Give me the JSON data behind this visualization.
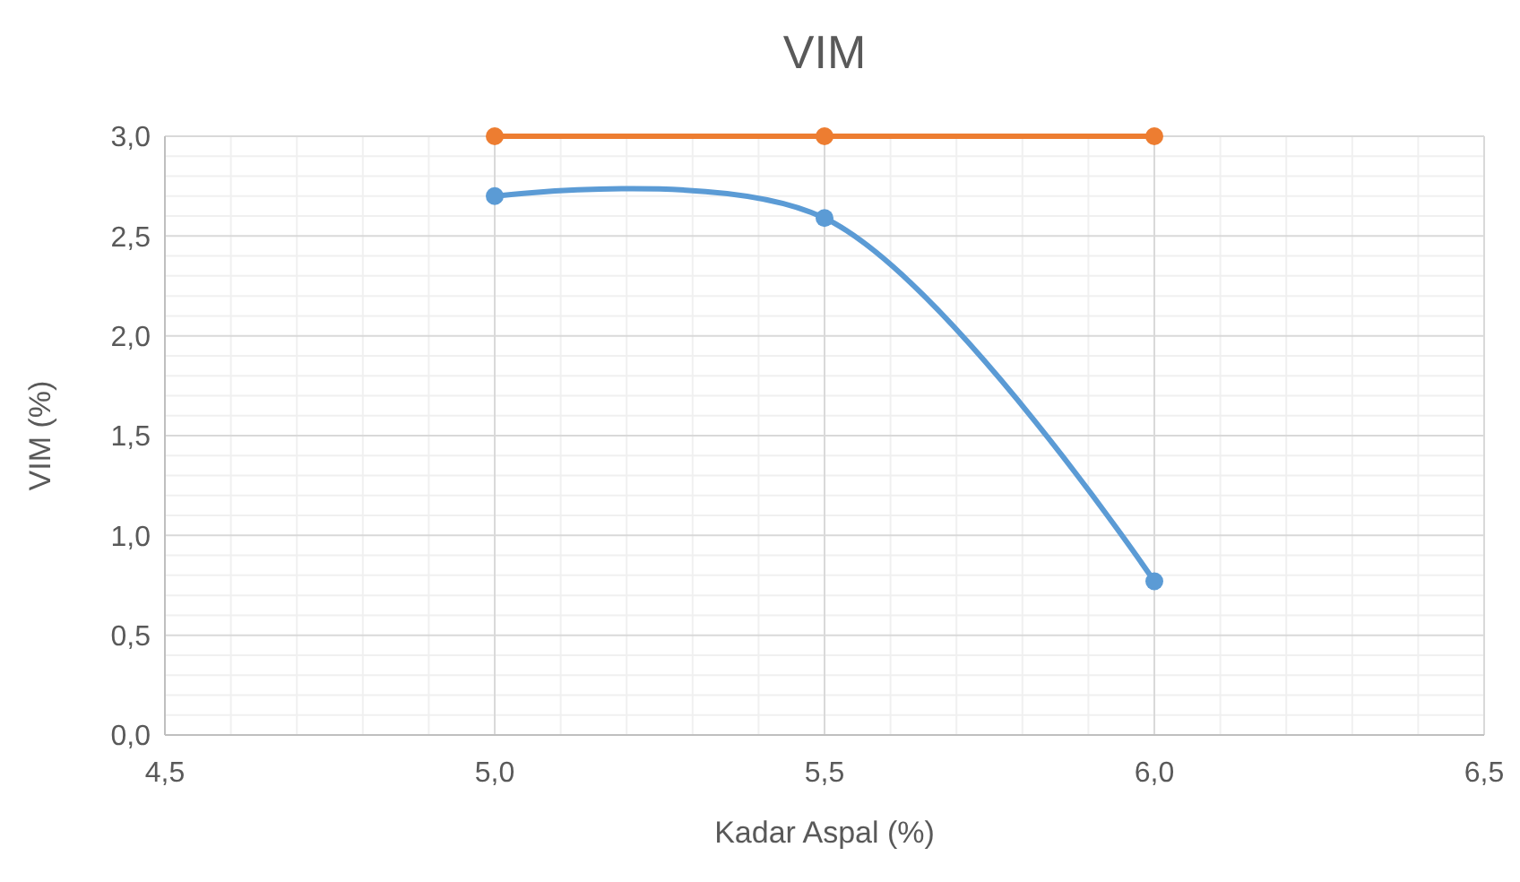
{
  "chart_data": {
    "type": "line",
    "title": "VIM",
    "xlabel": "Kadar Aspal (%)",
    "ylabel": "VIM (%)",
    "x": [
      5.0,
      5.5,
      6.0
    ],
    "series": [
      {
        "color": "#5b9bd5",
        "values": [
          2.7,
          2.59,
          0.77
        ]
      },
      {
        "color": "#ed7d31",
        "values": [
          3.0,
          3.0,
          3.0
        ]
      }
    ],
    "xlim": [
      4.5,
      6.5
    ],
    "xticks": [
      {
        "value": 4.5,
        "label": "4,5"
      },
      {
        "value": 5.0,
        "label": "5,0"
      },
      {
        "value": 5.5,
        "label": "5,5"
      },
      {
        "value": 6.0,
        "label": "6,0"
      },
      {
        "value": 6.5,
        "label": "6,5"
      }
    ],
    "ylim": [
      0,
      3
    ],
    "yticks": [
      {
        "value": 0,
        "label": "0,0"
      },
      {
        "value": 0.5,
        "label": "0,5"
      },
      {
        "value": 1.0,
        "label": "1,0"
      },
      {
        "value": 1.5,
        "label": "1,5"
      },
      {
        "value": 2.0,
        "label": "2,0"
      },
      {
        "value": 2.5,
        "label": "2,5"
      },
      {
        "value": 3.0,
        "label": "3,0"
      }
    ],
    "grid": true,
    "marker": "circle",
    "line_style": "solid"
  }
}
